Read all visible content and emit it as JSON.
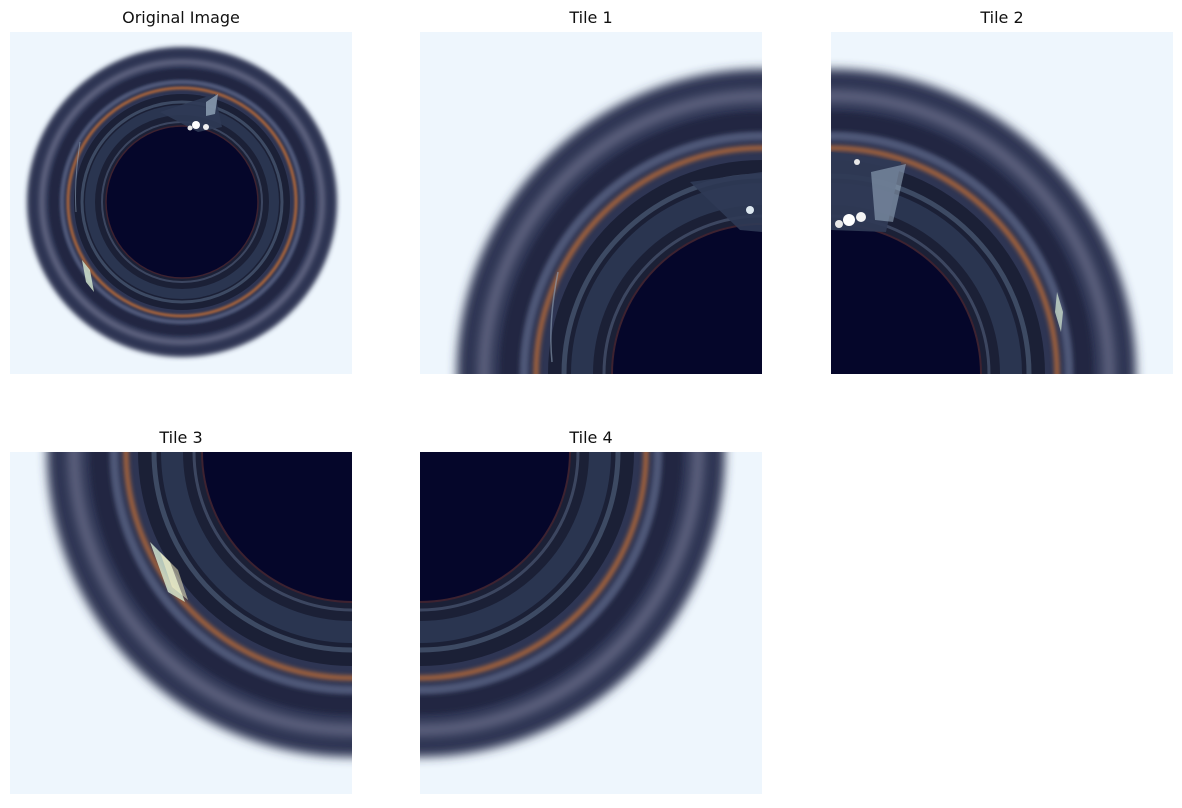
{
  "figure": {
    "panels": [
      {
        "title": "Original Image"
      },
      {
        "title": "Tile 1"
      },
      {
        "title": "Tile 2"
      },
      {
        "title": "Tile 3"
      },
      {
        "title": "Tile 4"
      }
    ]
  },
  "colors": {
    "background": "#eef6fd",
    "outer_ring": "#3a3f5b",
    "inner_dark": "#05062a",
    "copper": "#b8693a",
    "highlight": "#ffffff"
  }
}
